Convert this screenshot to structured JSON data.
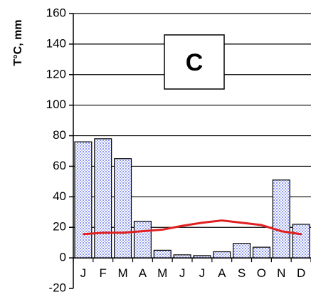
{
  "chart_data": {
    "type": "bar",
    "ylabel": "T°C, mm",
    "annotation": "C",
    "categories": [
      "J",
      "F",
      "M",
      "A",
      "M",
      "J",
      "J",
      "A",
      "S",
      "O",
      "N",
      "D"
    ],
    "ylim": [
      -20,
      160
    ],
    "yticks": [
      -20,
      0,
      20,
      40,
      60,
      80,
      100,
      120,
      140,
      160
    ],
    "grid": true,
    "series": [
      {
        "type": "bar",
        "values": [
          76,
          78,
          65,
          24,
          5,
          2,
          1.5,
          4,
          9.5,
          7,
          51,
          22
        ],
        "color": "#c6cdf5"
      },
      {
        "type": "line",
        "values": [
          15.5,
          16.5,
          16.5,
          17.5,
          18.5,
          21,
          23,
          24.5,
          23,
          21.5,
          17.5,
          15.5
        ],
        "color": "#e02020"
      }
    ]
  }
}
